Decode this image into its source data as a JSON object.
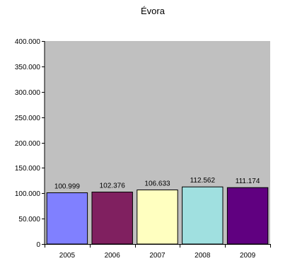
{
  "chart_data": {
    "type": "bar",
    "title": "Évora",
    "xlabel": "",
    "ylabel": "",
    "categories": [
      "2005",
      "2006",
      "2007",
      "2008",
      "2009"
    ],
    "values": [
      100999,
      102376,
      106633,
      112562,
      111174
    ],
    "value_labels": [
      "100.999",
      "102.376",
      "106.633",
      "112.562",
      "111.174"
    ],
    "bar_colors": [
      "#8080ff",
      "#802060",
      "#ffffc0",
      "#a0e0e0",
      "#600080"
    ],
    "ylim": [
      0,
      400000
    ],
    "yticks": [
      0,
      50000,
      100000,
      150000,
      200000,
      250000,
      300000,
      350000,
      400000
    ],
    "ytick_labels": [
      "0",
      "50.000",
      "100.000",
      "150.000",
      "200.000",
      "250.000",
      "300.000",
      "350.000",
      "400.000"
    ],
    "plot_background": "#c0c0c0",
    "grid": false,
    "legend": "none"
  }
}
